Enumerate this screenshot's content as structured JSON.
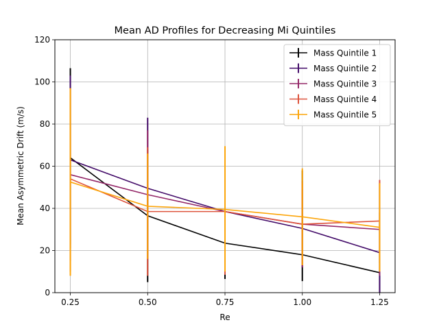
{
  "chart_data": {
    "type": "line",
    "title": "Mean AD Profiles for Decreasing Mi Quintiles",
    "xlabel": "Re",
    "ylabel": "Mean Asymmetric Drift (m/s)",
    "x": [
      0.25,
      0.5,
      0.75,
      1.0,
      1.25
    ],
    "xlim": [
      0.2,
      1.3
    ],
    "ylim": [
      0,
      120
    ],
    "xticks": [
      0.25,
      0.5,
      0.75,
      1.0,
      1.25
    ],
    "xtick_labels": [
      "0.25",
      "0.50",
      "0.75",
      "1.00",
      "1.25"
    ],
    "yticks": [
      0,
      20,
      40,
      60,
      80,
      100,
      120
    ],
    "ytick_labels": [
      "0",
      "20",
      "40",
      "60",
      "80",
      "100",
      "120"
    ],
    "grid": true,
    "legend_position": "top-right",
    "error_bars": true,
    "series": [
      {
        "name": "Mass Quintile 1",
        "color": "#000000",
        "values": [
          64,
          36.5,
          23.5,
          18,
          9.5
        ],
        "err_low": [
          21,
          5,
          6.5,
          5.5,
          0
        ],
        "err_high": [
          106.5,
          68,
          64.5,
          58,
          52
        ]
      },
      {
        "name": "Mass Quintile 2",
        "color": "#420a68",
        "values": [
          63,
          49.5,
          38.5,
          30.5,
          19
        ],
        "err_low": [
          23,
          16,
          11,
          12,
          0
        ],
        "err_high": [
          103,
          83,
          66,
          49,
          38
        ]
      },
      {
        "name": "Mass Quintile 3",
        "color": "#932667",
        "values": [
          56,
          46.5,
          38.5,
          32.5,
          30
        ],
        "err_low": [
          15,
          16,
          10,
          12,
          8
        ],
        "err_high": [
          97,
          77,
          67,
          53,
          52
        ]
      },
      {
        "name": "Mass Quintile 4",
        "color": "#dd513a",
        "values": [
          54,
          38.5,
          38.5,
          32.5,
          34
        ],
        "err_low": [
          10,
          8,
          8.5,
          13,
          14
        ],
        "err_high": [
          97,
          69,
          68.5,
          52,
          53.5
        ]
      },
      {
        "name": "Mass Quintile 5",
        "color": "#fca50a",
        "values": [
          52.5,
          41,
          39.5,
          36,
          31
        ],
        "err_low": [
          8,
          16,
          10,
          13,
          10
        ],
        "err_high": [
          97,
          66,
          69.5,
          59,
          52
        ]
      }
    ]
  }
}
